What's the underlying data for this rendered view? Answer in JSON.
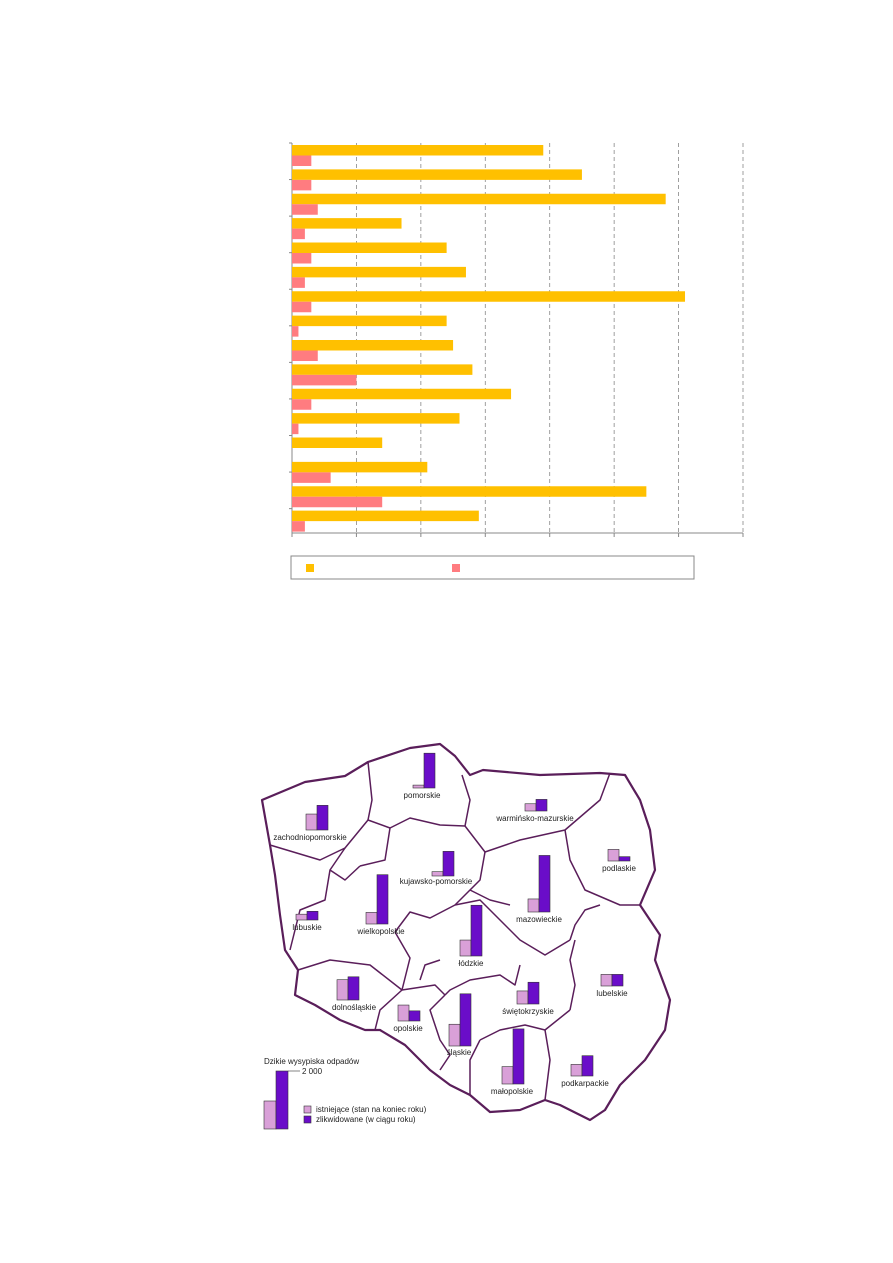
{
  "chart_data": [
    {
      "type": "bar",
      "orientation": "horizontal",
      "title": "",
      "xlabel": "",
      "ylabel": "",
      "grid": true,
      "legend_placement": "bottom",
      "xlim": [
        0,
        70
      ],
      "colors": {
        "series1": "#FFC000",
        "series2": "#FF7C80"
      },
      "series": [
        {
          "values": [
            39,
            45,
            58,
            17,
            24,
            27,
            61,
            24,
            25,
            28,
            34,
            26,
            14,
            21,
            55,
            29
          ]
        },
        {
          "values": [
            3,
            3,
            4,
            2,
            3,
            2,
            3,
            1,
            4,
            10,
            3,
            1,
            0,
            6,
            14,
            2
          ]
        }
      ]
    },
    {
      "type": "bar",
      "subtype": "map-bars",
      "title": "Dzikie wysypiska odpadów",
      "scale_label": "2 000",
      "scale_value": 2000,
      "colors": {
        "existing": "#D9A0D8",
        "liquidated": "#6A0DC9",
        "border": "#5A1E5A"
      },
      "legend": [
        {
          "label": "istniejące (stan na koniec roku)",
          "color_key": "existing"
        },
        {
          "label": "zlikwidowane (w ciągu roku)",
          "color_key": "liquidated"
        }
      ],
      "regions": [
        {
          "name": "pomorskie",
          "existing": 100,
          "liquidated": 1200
        },
        {
          "name": "warmińsko-mazurskie",
          "existing": 250,
          "liquidated": 400
        },
        {
          "name": "zachodniopomorskie",
          "existing": 550,
          "liquidated": 850
        },
        {
          "name": "podlaskie",
          "existing": 400,
          "liquidated": 150
        },
        {
          "name": "kujawsko-pomorskie",
          "existing": 150,
          "liquidated": 850
        },
        {
          "name": "mazowieckie",
          "existing": 450,
          "liquidated": 1950
        },
        {
          "name": "lubuskie",
          "existing": 200,
          "liquidated": 300
        },
        {
          "name": "wielkopolskie",
          "existing": 400,
          "liquidated": 1700
        },
        {
          "name": "łódzkie",
          "existing": 550,
          "liquidated": 1750
        },
        {
          "name": "lubelskie",
          "existing": 400,
          "liquidated": 400
        },
        {
          "name": "dolnośląskie",
          "existing": 700,
          "liquidated": 800
        },
        {
          "name": "opolskie",
          "existing": 550,
          "liquidated": 350
        },
        {
          "name": "świętokrzyskie",
          "existing": 450,
          "liquidated": 750
        },
        {
          "name": "śląskie",
          "existing": 750,
          "liquidated": 1800
        },
        {
          "name": "małopolskie",
          "existing": 600,
          "liquidated": 1900
        },
        {
          "name": "podkarpackie",
          "existing": 400,
          "liquidated": 700
        }
      ]
    }
  ]
}
